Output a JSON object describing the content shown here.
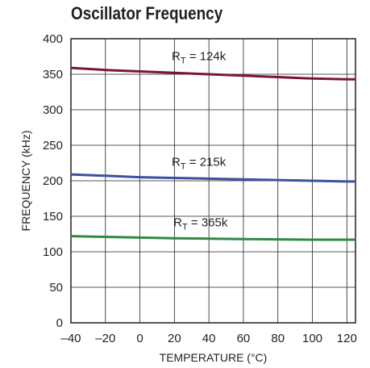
{
  "chart_data": {
    "type": "line",
    "title": "Oscillator Frequency",
    "xlabel": "TEMPERATURE (°C)",
    "ylabel": "FREQUENCY (kHz)",
    "xlim": [
      -40,
      125
    ],
    "ylim": [
      0,
      400
    ],
    "xticks": [
      -40,
      -20,
      0,
      20,
      40,
      60,
      80,
      100,
      120
    ],
    "xtick_labels": [
      "–40",
      "–20",
      "0",
      "20",
      "40",
      "60",
      "80",
      "100",
      "120"
    ],
    "yticks": [
      0,
      50,
      100,
      150,
      200,
      250,
      300,
      350,
      400
    ],
    "grid": true,
    "legend": "none",
    "series": [
      {
        "label_main": "R",
        "label_sub": "T",
        "label_rest": " = 124k",
        "color": "#7a1730",
        "x": [
          -40,
          -20,
          0,
          20,
          40,
          60,
          80,
          100,
          120,
          125
        ],
        "y": [
          359,
          356,
          354,
          352,
          350,
          348,
          346,
          344,
          343,
          343
        ]
      },
      {
        "label_main": "R",
        "label_sub": "T",
        "label_rest": " = 215k",
        "color": "#3d50a0",
        "x": [
          -40,
          -20,
          0,
          20,
          40,
          60,
          80,
          100,
          120,
          125
        ],
        "y": [
          209,
          207,
          205,
          204,
          203,
          202,
          201,
          200,
          199,
          199
        ]
      },
      {
        "label_main": "R",
        "label_sub": "T",
        "label_rest": " = 365k",
        "color": "#2f8a44",
        "x": [
          -40,
          -20,
          0,
          20,
          40,
          60,
          80,
          100,
          120,
          125
        ],
        "y": [
          122,
          121,
          120,
          119,
          118.5,
          118,
          117.5,
          117,
          117,
          117
        ]
      }
    ]
  }
}
